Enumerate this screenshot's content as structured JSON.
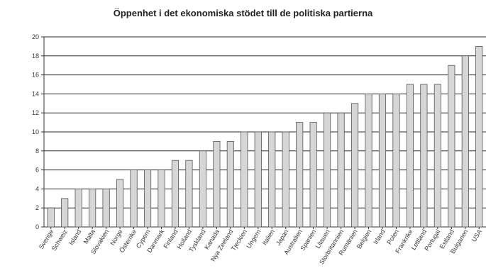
{
  "chart_data": {
    "type": "bar",
    "title": "Öppenhet i det ekonomiska stödet till de politiska partierna",
    "xlabel": "",
    "ylabel": "",
    "ylim": [
      0,
      20
    ],
    "yticks": [
      "0",
      "2",
      "4",
      "6",
      "8",
      "10",
      "12",
      "14",
      "16",
      "18",
      "20"
    ],
    "grid": true,
    "categories": [
      "Sverige",
      "Schweiz",
      "Island",
      "Malta",
      "Slovakien",
      "Norge",
      "Österrike",
      "Cypern",
      "Danmark",
      "Finland",
      "Holland",
      "Tyskland",
      "Kanada",
      "Nya Zeeland",
      "Tjeckien",
      "Ungern",
      "Italien",
      "Japan",
      "Australien",
      "Spanien",
      "Litauen",
      "Storbritannien",
      "Rumänien",
      "Belgien",
      "Irland",
      "Polen",
      "Frankrike",
      "Lettland",
      "Portugal",
      "Estland",
      "Bulgarien",
      "USA"
    ],
    "values": [
      2,
      3,
      4,
      4,
      4,
      5,
      6,
      6,
      6,
      7,
      7,
      8,
      9,
      9,
      10,
      10,
      10,
      10,
      11,
      11,
      12,
      12,
      13,
      14,
      14,
      14,
      15,
      15,
      15,
      17,
      18,
      19
    ],
    "colors": {
      "bar_fill": "#d6d6d6",
      "bar_stroke": "#555555",
      "grid": "#2b2b2b",
      "axis": "#333333"
    }
  }
}
